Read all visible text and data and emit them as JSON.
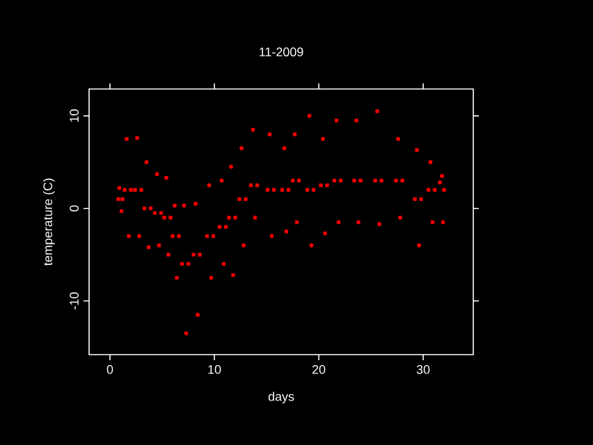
{
  "chart_data": {
    "type": "scatter",
    "title": "11-2009",
    "xlabel": "days",
    "ylabel": "temperature (C)",
    "color": "#ff0000",
    "marker": "square",
    "xlim": [
      -2,
      34.8
    ],
    "ylim": [
      -15.8,
      12.9
    ],
    "xticks": [
      0,
      10,
      20,
      30
    ],
    "yticks": [
      -10,
      0,
      10
    ],
    "x": [
      0.8,
      0.9,
      1.1,
      1.2,
      1.4,
      1.6,
      1.8,
      2.0,
      2.4,
      2.6,
      2.8,
      3.0,
      3.3,
      3.5,
      3.7,
      3.9,
      4.3,
      4.5,
      4.7,
      4.9,
      5.2,
      5.4,
      5.6,
      5.8,
      6.0,
      6.2,
      6.4,
      6.6,
      6.9,
      7.1,
      7.3,
      7.5,
      8.0,
      8.2,
      8.4,
      8.6,
      9.3,
      9.5,
      9.7,
      9.9,
      10.5,
      10.7,
      10.9,
      11.1,
      11.4,
      11.6,
      11.8,
      12.0,
      12.4,
      12.6,
      12.8,
      13.0,
      13.5,
      13.7,
      13.9,
      14.1,
      15.1,
      15.3,
      15.5,
      15.7,
      16.5,
      16.7,
      16.9,
      17.1,
      17.5,
      17.7,
      17.9,
      18.1,
      18.9,
      19.1,
      19.3,
      19.5,
      20.2,
      20.4,
      20.6,
      20.8,
      21.5,
      21.7,
      21.9,
      22.1,
      23.4,
      23.6,
      23.8,
      24.0,
      25.4,
      25.6,
      25.8,
      26.0,
      27.4,
      27.6,
      27.8,
      28.0,
      29.2,
      29.4,
      29.6,
      29.8,
      30.5,
      30.7,
      30.9,
      31.1,
      31.6,
      31.8,
      31.9,
      32.0
    ],
    "values": [
      1,
      2.2,
      -0.3,
      1,
      2,
      7.5,
      -3,
      2,
      2,
      7.6,
      -3,
      2,
      0,
      5,
      -4.2,
      0,
      -0.5,
      3.7,
      -4,
      -0.5,
      -1,
      3.3,
      -5,
      -1,
      -3,
      0.3,
      -7.5,
      -3,
      -6,
      0.3,
      -13.5,
      -6,
      -5,
      0.5,
      -11.5,
      -5,
      -3,
      2.5,
      -7.5,
      -3,
      -2,
      3,
      -6,
      -2,
      -1,
      4.5,
      -7.2,
      -1,
      1,
      6.5,
      -4,
      1,
      2.5,
      8.5,
      -1,
      2.5,
      2,
      8,
      -3,
      2,
      2,
      6.5,
      -2.5,
      2,
      3,
      8,
      -1.5,
      3,
      2,
      10,
      -4,
      2,
      2.5,
      7.5,
      -2.7,
      2.5,
      3,
      9.5,
      -1.5,
      3,
      3,
      9.5,
      -1.5,
      3,
      3,
      10.5,
      -1.7,
      3,
      3,
      7.5,
      -1,
      3,
      1,
      6.3,
      -4,
      1,
      2,
      5,
      -1.5,
      2,
      2.8,
      3.5,
      -1.5,
      2
    ]
  }
}
